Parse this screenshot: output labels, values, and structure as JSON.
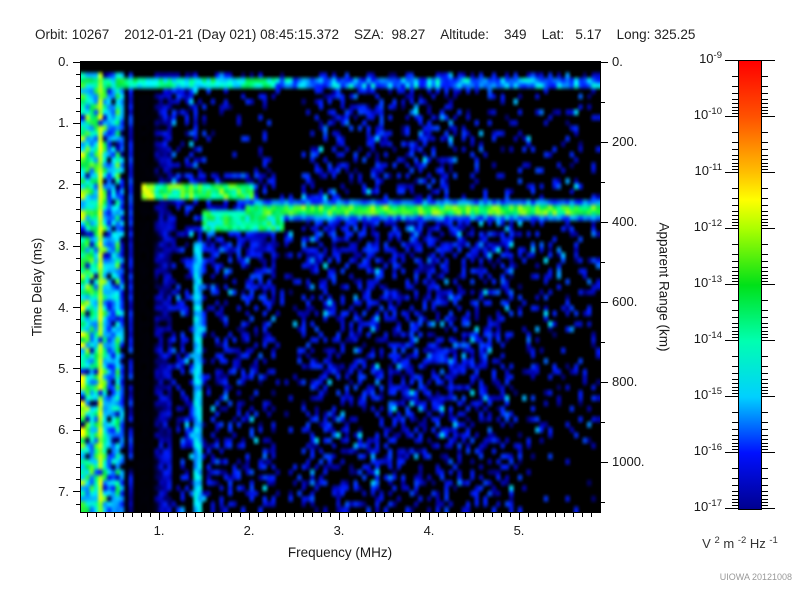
{
  "header": {
    "items": [
      "Orbit: 10267",
      "2012-01-21 (Day 021) 08:45:15.372",
      "SZA:  98.27",
      "Altitude:    349",
      "Lat:   5.17",
      "Long: 325.25"
    ]
  },
  "credit": "UIOWA 20121008",
  "chart_data": {
    "type": "heatmap",
    "description": "Radar sounder ionogram: echo spectral density versus sounding frequency and time delay",
    "xlabel": "Frequency (MHz)",
    "ylabel_left": "Time Delay (ms)",
    "ylabel_right": "Apparent Range (km)",
    "x_range_mhz": [
      0.133,
      5.9
    ],
    "y_range_ms": [
      0.0,
      7.33
    ],
    "x_ticks": {
      "values": [
        1,
        2,
        3,
        4,
        5
      ],
      "labels": [
        "1.",
        "2.",
        "3.",
        "4.",
        "5."
      ],
      "minor_step": 0.1
    },
    "y_ticks": {
      "values": [
        0,
        1,
        2,
        3,
        4,
        5,
        6,
        7
      ],
      "labels": [
        "0.",
        "1.",
        "2.",
        "3.",
        "4.",
        "5.",
        "6.",
        "7."
      ],
      "minor_step": 0.2
    },
    "range_ticks": {
      "values": [
        0,
        200,
        400,
        600,
        800,
        1000
      ],
      "labels": [
        "0.",
        "200.",
        "400.",
        "600.",
        "800.",
        "1000."
      ],
      "minor_step": 100
    },
    "colorbar": {
      "exponents": [
        -9,
        -10,
        -11,
        -12,
        -13,
        -14,
        -15,
        -16,
        -17
      ],
      "unit_parts": [
        {
          "base": "V",
          "sup": "2"
        },
        {
          "base": " m",
          "sup": "-2"
        },
        {
          "base": " Hz",
          "sup": "-1"
        }
      ],
      "gradient_stops": [
        [
          0,
          "#000090"
        ],
        [
          0.125,
          "#0010ff"
        ],
        [
          0.25,
          "#00d0ff"
        ],
        [
          0.375,
          "#00ffb0"
        ],
        [
          0.5,
          "#00e118"
        ],
        [
          0.625,
          "#aaff00"
        ],
        [
          0.69,
          "#ffff00"
        ],
        [
          0.75,
          "#ffc000"
        ],
        [
          0.875,
          "#ff5200"
        ],
        [
          1,
          "#ff0000"
        ]
      ]
    },
    "heatmap_render": {
      "grid_cols": 120,
      "grid_rows": 85,
      "seed": 1357924680,
      "colormap_stops": [
        [
          0,
          "#000000"
        ],
        [
          0.1,
          "#000010"
        ],
        [
          0.2,
          "#0000a8"
        ],
        [
          0.32,
          "#0020ff"
        ],
        [
          0.45,
          "#0095ff"
        ],
        [
          0.55,
          "#00e4ff"
        ],
        [
          0.66,
          "#00ffb0"
        ],
        [
          0.76,
          "#00e550"
        ],
        [
          0.86,
          "#55ff2a"
        ],
        [
          0.94,
          "#c8ff10"
        ],
        [
          1,
          "#ffff00"
        ]
      ],
      "features": {
        "top_blank_ms": 0.2,
        "early_line": {
          "t": [
            0.24,
            0.42
          ],
          "bright_f_max": 2.3
        },
        "iono_echo": {
          "t": [
            2.02,
            2.25
          ],
          "f": [
            0.85,
            2.05
          ]
        },
        "hot_spot": {
          "t": [
            2.02,
            2.2
          ],
          "f": [
            0.8,
            0.95
          ]
        },
        "iono_cusp": {
          "t": [
            2.4,
            2.75
          ],
          "f": [
            1.5,
            2.4
          ]
        },
        "surface_line": {
          "t": [
            2.3,
            2.48
          ],
          "halo_t": [
            2.2,
            2.62
          ],
          "f_start": 1.95
        },
        "cyan_stripe": {
          "f": [
            1.4,
            1.47
          ],
          "t_start": 2.9
        },
        "yellow_column": {
          "f": 0.33,
          "half_width": 0.025
        },
        "stripe_bands": [
          {
            "f": [
              0.133,
              0.4
            ],
            "base": 0.62,
            "vr": 0.33
          },
          {
            "f": [
              0.4,
              0.62
            ],
            "base": 0.42,
            "vr": 0.3
          },
          {
            "f": [
              0.62,
              0.95
            ],
            "base": 0.2,
            "vr": 0.25,
            "dropout": 0.25
          },
          {
            "f": [
              0.95,
              1.15
            ],
            "base": 0.14,
            "vr": 0.16
          }
        ],
        "speckle": {
          "base_density": 0.42,
          "regions": [
            {
              "f": [
                2.3,
                2.57
              ],
              "t": [
                0.45,
                7.33
              ],
              "mult": 0.25
            },
            {
              "f": [
                1.55,
                2.75
              ],
              "t": [
                0.45,
                1.85
              ],
              "mult": 0.35
            },
            {
              "f": [
                0.75,
                1.2
              ],
              "t": [
                5.3,
                7.33
              ],
              "mult": 0.2
            },
            {
              "f": [
                4.3,
                5.9
              ],
              "t": [
                0.45,
                2.25
              ],
              "mult": 0.35
            },
            {
              "f": [
                4.95,
                5.9
              ],
              "t": [
                2.6,
                7.33
              ],
              "mult": 0.45
            },
            {
              "f": [
                5.1,
                5.9
              ],
              "t": [
                6.2,
                7.33
              ],
              "mult": 0.3
            },
            {
              "f": [
                2.0,
                5.9
              ],
              "t": [
                2.55,
                3.3
              ],
              "mult": 1.5
            },
            {
              "f": [
                3.6,
                4.5
              ],
              "t": [
                4.4,
                6.1
              ],
              "mult": 1.35
            },
            {
              "f": [
                1.15,
                2.3
              ],
              "t": [
                1.85,
                3.1
              ],
              "mult": 1.4
            }
          ]
        }
      }
    }
  }
}
